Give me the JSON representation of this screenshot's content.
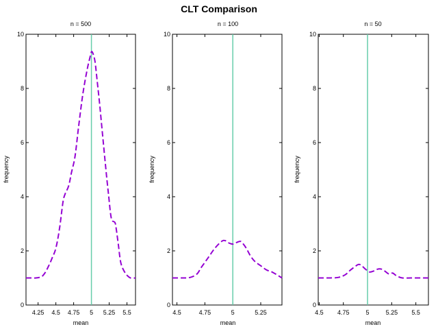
{
  "figure": {
    "title": "CLT Comparison"
  },
  "colors": {
    "density": "#9400d3",
    "mean_line": "#66cdaa",
    "axis": "#000000"
  },
  "chart_data": [
    {
      "type": "line",
      "title": "n = 500",
      "xlabel": "mean",
      "ylabel": "frequency",
      "xlim": [
        4.08,
        5.62
      ],
      "ylim": [
        0,
        10
      ],
      "xticks": [
        4.25,
        4.5,
        4.75,
        5,
        5.25,
        5.5
      ],
      "xtick_labels": [
        "4.25",
        "4.5",
        "4.75",
        "5",
        "5.25",
        "5.5"
      ],
      "yticks": [
        0,
        2,
        4,
        6,
        8,
        10
      ],
      "vline": 5,
      "series": [
        {
          "x": [
            4.08,
            4.15,
            4.22,
            4.3,
            4.35,
            4.4,
            4.45,
            4.5,
            4.55,
            4.6,
            4.63,
            4.68,
            4.72,
            4.77,
            4.82,
            4.88,
            4.94,
            4.98,
            5.0,
            5.02,
            5.05,
            5.08,
            5.12,
            5.16,
            5.2,
            5.24,
            5.28,
            5.33,
            5.35,
            5.38,
            5.41,
            5.45,
            5.5,
            5.55,
            5.62
          ],
          "y": [
            1.0,
            1.0,
            1.0,
            1.05,
            1.2,
            1.45,
            1.75,
            2.1,
            2.8,
            3.8,
            4.1,
            4.4,
            4.9,
            5.5,
            6.6,
            7.8,
            8.7,
            9.15,
            9.35,
            9.3,
            9.0,
            8.3,
            7.3,
            6.2,
            5.1,
            4.1,
            3.2,
            3.05,
            2.8,
            2.2,
            1.6,
            1.3,
            1.1,
            1.0,
            1.0
          ],
          "style": "dashed"
        }
      ]
    },
    {
      "type": "line",
      "title": "n = 100",
      "xlabel": "mean",
      "ylabel": "frequency",
      "xlim": [
        4.46,
        5.44
      ],
      "ylim": [
        0,
        10
      ],
      "xticks": [
        4.5,
        4.75,
        5,
        5.25
      ],
      "xtick_labels": [
        "4.5",
        "4.75",
        "5",
        "5.25"
      ],
      "yticks": [
        0,
        2,
        4,
        6,
        8,
        10
      ],
      "vline": 5,
      "series": [
        {
          "x": [
            4.46,
            4.55,
            4.62,
            4.68,
            4.72,
            4.78,
            4.84,
            4.9,
            4.93,
            4.96,
            5.0,
            5.03,
            5.06,
            5.08,
            5.12,
            5.16,
            5.2,
            5.25,
            5.3,
            5.36,
            5.44
          ],
          "y": [
            1.0,
            1.0,
            1.02,
            1.15,
            1.4,
            1.75,
            2.1,
            2.35,
            2.38,
            2.3,
            2.25,
            2.3,
            2.35,
            2.32,
            2.1,
            1.8,
            1.6,
            1.45,
            1.3,
            1.2,
            1.0
          ],
          "style": "dashed"
        }
      ]
    },
    {
      "type": "line",
      "title": "n = 50",
      "xlabel": "mean",
      "ylabel": "frequency",
      "xlim": [
        4.49,
        5.63
      ],
      "ylim": [
        0,
        10
      ],
      "xticks": [
        4.5,
        4.75,
        5,
        5.25,
        5.5
      ],
      "xtick_labels": [
        "4.5",
        "4.75",
        "5",
        "5.25",
        "5.5"
      ],
      "yticks": [
        0,
        2,
        4,
        6,
        8,
        10
      ],
      "vline": 5,
      "series": [
        {
          "x": [
            4.49,
            4.6,
            4.7,
            4.77,
            4.82,
            4.87,
            4.91,
            4.94,
            4.98,
            5.02,
            5.06,
            5.1,
            5.14,
            5.18,
            5.22,
            5.26,
            5.3,
            5.36,
            5.45,
            5.55,
            5.63
          ],
          "y": [
            1.0,
            1.0,
            1.02,
            1.12,
            1.28,
            1.42,
            1.5,
            1.45,
            1.32,
            1.22,
            1.25,
            1.32,
            1.33,
            1.25,
            1.15,
            1.18,
            1.08,
            1.0,
            1.0,
            1.0,
            1.0
          ],
          "style": "dashed"
        }
      ]
    }
  ]
}
